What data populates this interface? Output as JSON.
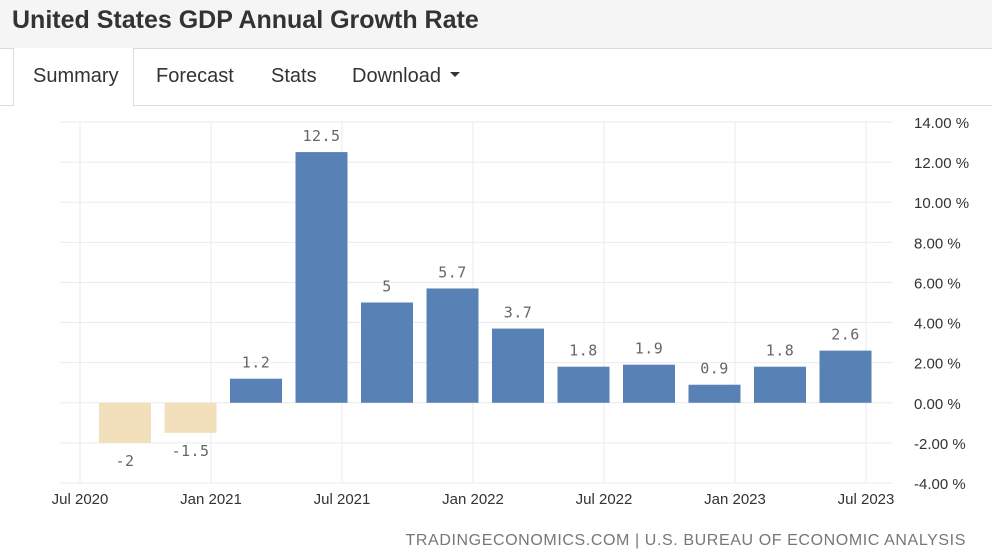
{
  "page": {
    "title": "United States GDP Annual Growth Rate"
  },
  "tabs": [
    {
      "label": "Summary",
      "active": true
    },
    {
      "label": "Forecast",
      "active": false
    },
    {
      "label": "Stats",
      "active": false
    },
    {
      "label": "Download",
      "active": false,
      "dropdown": true
    }
  ],
  "footer": {
    "source": "TRADINGECONOMICS.COM | U.S. BUREAU OF ECONOMIC ANALYSIS"
  },
  "colors": {
    "positive": "#5881b6",
    "negative": "#f2dfbb",
    "grid": "#ebebeb",
    "text": "#333333",
    "label": "#666666"
  },
  "chart_data": {
    "type": "bar",
    "categories": [
      "Q3 2020",
      "Q4 2020",
      "Q1 2021",
      "Q2 2021",
      "Q3 2021",
      "Q4 2021",
      "Q1 2022",
      "Q2 2022",
      "Q3 2022",
      "Q4 2022",
      "Q1 2023",
      "Q2 2023"
    ],
    "values": [
      -2,
      -1.5,
      1.2,
      12.5,
      5,
      5.7,
      3.7,
      1.8,
      1.9,
      0.9,
      1.8,
      2.6
    ],
    "data_labels": [
      "-2",
      "-1.5",
      "1.2",
      "12.5",
      "5",
      "5.7",
      "3.7",
      "1.8",
      "1.9",
      "0.9",
      "1.8",
      "2.6"
    ],
    "x_tick_labels": [
      "Jul 2020",
      "Jan 2021",
      "Jul 2021",
      "Jan 2022",
      "Jul 2022",
      "Jan 2023",
      "Jul 2023"
    ],
    "y_tick_labels": [
      "14.00 %",
      "12.00 %",
      "10.00 %",
      "8.00 %",
      "6.00 %",
      "4.00 %",
      "2.00 %",
      "0.00 %",
      "-2.00 %",
      "-4.00 %"
    ],
    "y_ticks": [
      14,
      12,
      10,
      8,
      6,
      4,
      2,
      0,
      -2,
      -4
    ],
    "ylim": [
      -4,
      14
    ],
    "y_axis_side": "right",
    "grid": true,
    "title": "",
    "xlabel": "",
    "ylabel": ""
  }
}
